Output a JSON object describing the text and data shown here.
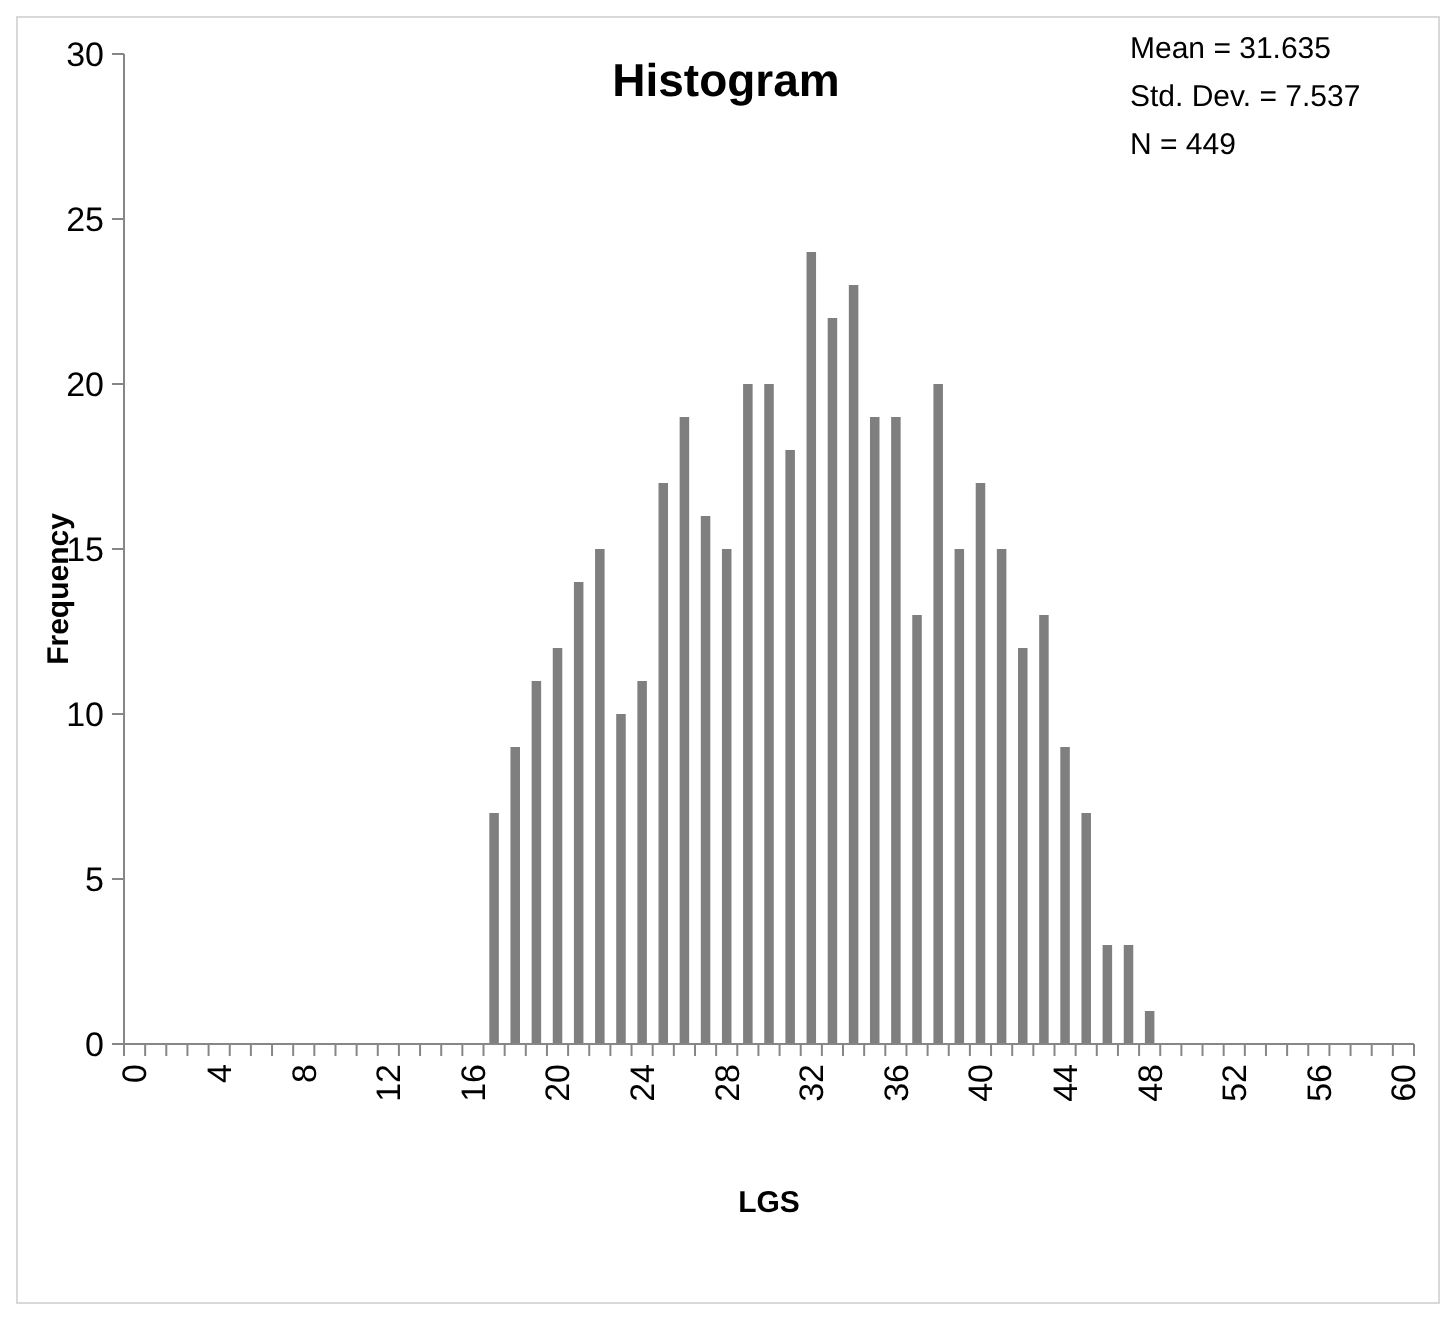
{
  "chart_data": {
    "type": "bar",
    "title": "Histogram",
    "xlabel": "LGS",
    "ylabel": "Frequency",
    "annotations": [
      "Mean = 31.635",
      "Std. Dev. = 7.537",
      "N = 449"
    ],
    "categories": [
      "0",
      null,
      null,
      null,
      "4",
      null,
      null,
      null,
      "8",
      null,
      null,
      null,
      "12",
      null,
      null,
      null,
      "16",
      null,
      null,
      null,
      "20",
      null,
      null,
      null,
      "24",
      null,
      null,
      null,
      "28",
      null,
      null,
      null,
      "32",
      null,
      null,
      null,
      "36",
      null,
      null,
      null,
      "40",
      null,
      null,
      null,
      "44",
      null,
      null,
      null,
      "48",
      null,
      null,
      null,
      "52",
      null,
      null,
      null,
      "56",
      null,
      null,
      null,
      "60"
    ],
    "values": [
      0,
      0,
      0,
      0,
      0,
      0,
      0,
      0,
      0,
      0,
      0,
      0,
      0,
      0,
      0,
      0,
      0,
      7,
      9,
      11,
      12,
      14,
      15,
      10,
      11,
      17,
      19,
      16,
      15,
      20,
      20,
      18,
      24,
      22,
      23,
      19,
      19,
      13,
      20,
      15,
      17,
      15,
      12,
      13,
      9,
      7,
      3,
      3,
      1,
      0,
      0,
      0,
      0,
      0,
      0,
      0,
      0,
      0,
      0,
      0,
      0
    ],
    "color": "#7f7f7f",
    "ylim": [
      0,
      30
    ],
    "yticks": [
      0,
      5,
      10,
      15,
      20,
      25,
      30
    ],
    "grid": false
  }
}
